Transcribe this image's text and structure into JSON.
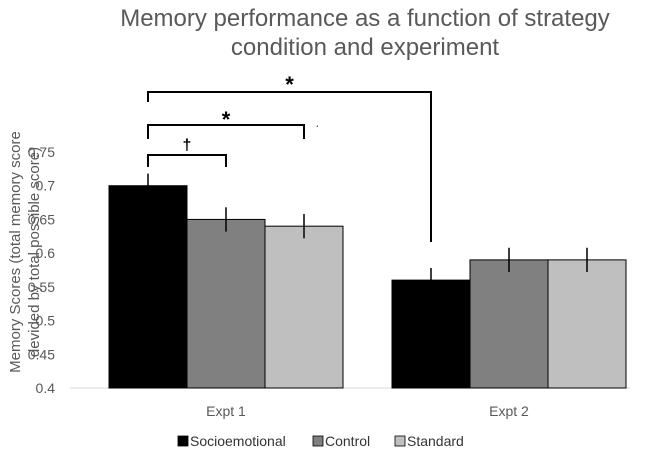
{
  "chart_data": {
    "type": "bar",
    "title_lines": [
      "Memory performance as a function of strategy",
      "condition and experiment"
    ],
    "ylabel_lines": [
      "Memory Scores (total memory score",
      "devided by total possible score)"
    ],
    "categories": [
      "Expt 1",
      "Expt 2"
    ],
    "ylim": [
      0.4,
      0.75
    ],
    "yticks": [
      "0.4",
      "0.45",
      "0.5",
      "0.55",
      "0.6",
      "0.65",
      "0.7",
      "0.75"
    ],
    "series": [
      {
        "name": "Socioemotional",
        "color": "#000000",
        "values": [
          0.7,
          0.56
        ],
        "errors": [
          0.018,
          0.018
        ]
      },
      {
        "name": "Control",
        "color": "#808080",
        "values": [
          0.65,
          0.59
        ],
        "errors": [
          0.018,
          0.018
        ]
      },
      {
        "name": "Standard",
        "color": "#bfbfbf",
        "values": [
          0.64,
          0.59
        ],
        "errors": [
          0.018,
          0.018
        ]
      }
    ],
    "annotations": [
      {
        "label": "†",
        "from": "Expt 1 Socioemotional",
        "to": "Expt 1 Control"
      },
      {
        "label": "*",
        "from": "Expt 1 Socioemotional",
        "to": "Expt 1 Standard"
      },
      {
        "label": "*",
        "from": "Expt 1 Socioemotional",
        "to": "Expt 2 Socioemotional"
      }
    ],
    "grid": false,
    "legend_position": "bottom"
  }
}
